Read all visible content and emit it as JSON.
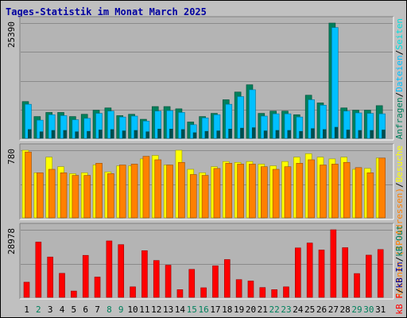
{
  "page": {
    "title": "Tages-Statistik im Monat March 2025"
  },
  "colors": {
    "background": "#c0c0c0",
    "panel": "#b4b4b4",
    "grid": "#8a8a8a",
    "title": "#0000a0",
    "hits": "#00805c",
    "files": "#00c0ff",
    "pages": "#00e0e0",
    "sites": "#ff8000",
    "visits": "#ffff00",
    "kbytes": "#ff0000",
    "weekday": "#000000",
    "weekend": "#00805c"
  },
  "chart_data": [
    {
      "type": "bar",
      "ylim": [
        0,
        25390
      ],
      "ymax_label": "25390",
      "legend": [
        {
          "text": "Anfragen",
          "color": "#00805c"
        },
        {
          "text": "/",
          "color": "#000000"
        },
        {
          "text": "Dateien",
          "color": "#00c0ff"
        },
        {
          "text": "/",
          "color": "#000000"
        },
        {
          "text": "Seiten",
          "color": "#00e0e0"
        }
      ],
      "categories": [
        "1",
        "2",
        "3",
        "4",
        "5",
        "6",
        "7",
        "8",
        "9",
        "10",
        "11",
        "12",
        "13",
        "14",
        "15",
        "16",
        "17",
        "18",
        "19",
        "20",
        "21",
        "22",
        "23",
        "24",
        "25",
        "26",
        "27",
        "28",
        "29",
        "30",
        "31"
      ],
      "weekend": [
        false,
        true,
        false,
        false,
        false,
        false,
        false,
        true,
        true,
        false,
        false,
        false,
        false,
        false,
        true,
        true,
        false,
        false,
        false,
        false,
        false,
        true,
        true,
        false,
        false,
        false,
        false,
        false,
        true,
        true,
        false
      ],
      "series": [
        {
          "name": "Anfragen",
          "color": "#00805c",
          "values": [
            8100,
            4800,
            5700,
            5700,
            4800,
            5300,
            6200,
            6700,
            5000,
            5300,
            4200,
            7000,
            7000,
            6500,
            3600,
            4800,
            5500,
            8500,
            10200,
            11800,
            5500,
            6000,
            6000,
            5200,
            9500,
            7800,
            25390,
            6700,
            6200,
            6200,
            7200
          ]
        },
        {
          "name": "Dateien",
          "color": "#00c0ff",
          "values": [
            7500,
            4000,
            5200,
            5000,
            4100,
            4400,
            5500,
            6000,
            4700,
            4900,
            3800,
            6000,
            6100,
            5700,
            3000,
            4500,
            5200,
            7500,
            9200,
            10700,
            4900,
            5400,
            5400,
            4700,
            8500,
            7300,
            24400,
            6000,
            5600,
            5500,
            5400
          ]
        },
        {
          "name": "Seiten",
          "color": "#00e0e0",
          "values": [
            2000,
            1500,
            1800,
            1800,
            1500,
            1600,
            1900,
            2000,
            1700,
            1800,
            1500,
            2100,
            2100,
            2000,
            1300,
            1600,
            1700,
            2100,
            2300,
            2400,
            1700,
            1800,
            1800,
            1600,
            2200,
            2000,
            2500,
            1900,
            1800,
            1800,
            1900
          ]
        }
      ]
    },
    {
      "type": "bar",
      "ylim": [
        0,
        780
      ],
      "ymax_label": "780",
      "legend": [
        {
          "text": "Rechner (IP-Adressen)",
          "color": "#ff8000"
        },
        {
          "text": "/",
          "color": "#000000"
        },
        {
          "text": "Besuche",
          "color": "#ffff00"
        }
      ],
      "categories": [
        "1",
        "2",
        "3",
        "4",
        "5",
        "6",
        "7",
        "8",
        "9",
        "10",
        "11",
        "12",
        "13",
        "14",
        "15",
        "16",
        "17",
        "18",
        "19",
        "20",
        "21",
        "22",
        "23",
        "24",
        "25",
        "26",
        "27",
        "28",
        "29",
        "30",
        "31"
      ],
      "series": [
        {
          "name": "Besuche",
          "color": "#ffff00",
          "values": [
            780,
            520,
            700,
            590,
            510,
            520,
            610,
            530,
            600,
            600,
            680,
            720,
            610,
            780,
            560,
            520,
            590,
            650,
            640,
            650,
            620,
            600,
            650,
            700,
            740,
            700,
            680,
            700,
            560,
            570,
            690
          ]
        },
        {
          "name": "Rechner (IP-Adressen)",
          "color": "#ff8000",
          "values": [
            760,
            520,
            560,
            520,
            490,
            490,
            630,
            510,
            610,
            620,
            710,
            670,
            610,
            640,
            500,
            490,
            570,
            630,
            620,
            620,
            590,
            560,
            590,
            630,
            670,
            610,
            620,
            640,
            580,
            520,
            690
          ]
        }
      ]
    },
    {
      "type": "bar",
      "ylim": [
        0,
        28978
      ],
      "ymax_label": "28978",
      "legend": [
        {
          "text": "kB F",
          "color": "#ff0000"
        },
        {
          "text": "/",
          "color": "#000000"
        },
        {
          "text": "kB In",
          "color": "#0000a0"
        },
        {
          "text": "/",
          "color": "#000000"
        },
        {
          "text": "kB Out",
          "color": "#00805c"
        }
      ],
      "categories": [
        "1",
        "2",
        "3",
        "4",
        "5",
        "6",
        "7",
        "8",
        "9",
        "10",
        "11",
        "12",
        "13",
        "14",
        "15",
        "16",
        "17",
        "18",
        "19",
        "20",
        "21",
        "22",
        "23",
        "24",
        "25",
        "26",
        "27",
        "28",
        "29",
        "30",
        "31"
      ],
      "series": [
        {
          "name": "kB F",
          "color": "#ff0000",
          "values": [
            6500,
            23700,
            17300,
            10300,
            2700,
            18000,
            8700,
            24200,
            22600,
            4500,
            20000,
            15800,
            13800,
            3300,
            12000,
            4100,
            13500,
            16200,
            7600,
            7000,
            4200,
            3300,
            4500,
            21200,
            23300,
            20300,
            28978,
            21300,
            10200,
            18100,
            20500
          ]
        }
      ]
    }
  ]
}
